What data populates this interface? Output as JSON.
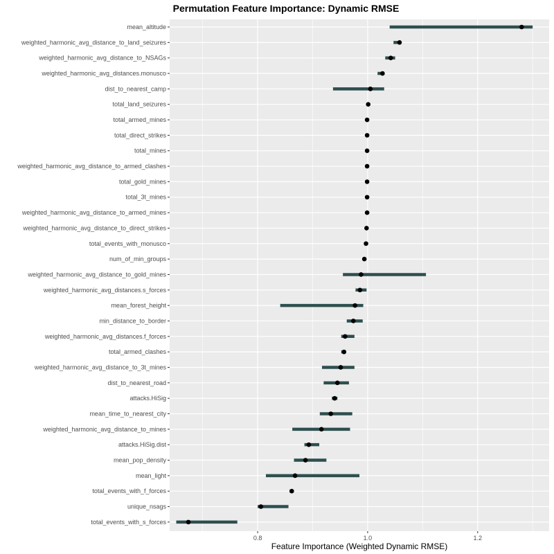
{
  "chart_data": {
    "type": "dot-errorbar",
    "title": "Permutation Feature Importance: Dynamic RMSE",
    "xlabel": "Feature Importance (Weighted Dynamic RMSE)",
    "ylabel": "",
    "xlim": [
      0.64,
      1.33
    ],
    "x_ticks": [
      0.8,
      1.0,
      1.2
    ],
    "x_tick_labels": [
      "0.8",
      "1.0",
      "1.2"
    ],
    "grid": true,
    "legend": "none",
    "colors": {
      "panel": "#ebebeb",
      "grid": "#ffffff",
      "range_bar": "#2f4f4f",
      "point": "#000000"
    },
    "features": [
      {
        "name": "mean_altitude",
        "value": 1.28,
        "low": 1.04,
        "high": 1.3
      },
      {
        "name": "weighted_harmonic_avg_distance_to_land_seizures",
        "value": 1.058,
        "low": 1.047,
        "high": 1.06
      },
      {
        "name": "weighted_harmonic_avg_distance_to_NSAGs",
        "value": 1.042,
        "low": 1.032,
        "high": 1.05
      },
      {
        "name": "weighted_harmonic_avg_distances.monusco",
        "value": 1.027,
        "low": 1.018,
        "high": 1.03
      },
      {
        "name": "dist_to_nearest_camp",
        "value": 1.005,
        "low": 0.937,
        "high": 1.03
      },
      {
        "name": "total_land_seizures",
        "value": 1.001,
        "low": 0.999,
        "high": 1.003
      },
      {
        "name": "total_armed_mines",
        "value": 0.999,
        "low": 0.997,
        "high": 1.001
      },
      {
        "name": "total_direct_strikes",
        "value": 0.999,
        "low": 0.997,
        "high": 1.001
      },
      {
        "name": "total_mines",
        "value": 0.999,
        "low": 0.997,
        "high": 1.001
      },
      {
        "name": "weighted_harmonic_avg_distance_to_armed_clashes",
        "value": 0.999,
        "low": 0.997,
        "high": 1.001
      },
      {
        "name": "total_gold_mines",
        "value": 0.999,
        "low": 0.997,
        "high": 1.001
      },
      {
        "name": "total_3t_mines",
        "value": 0.999,
        "low": 0.997,
        "high": 1.001
      },
      {
        "name": "weighted_harmonic_avg_distance_to_armed_mines",
        "value": 0.999,
        "low": 0.997,
        "high": 1.001
      },
      {
        "name": "weighted_harmonic_avg_distance_to_direct_strikes",
        "value": 0.998,
        "low": 0.996,
        "high": 1.0
      },
      {
        "name": "total_events_with_monusco",
        "value": 0.997,
        "low": 0.995,
        "high": 0.999
      },
      {
        "name": "num_of_min_groups",
        "value": 0.994,
        "low": 0.992,
        "high": 0.996
      },
      {
        "name": "weighted_harmonic_avg_distance_to_gold_mines",
        "value": 0.988,
        "low": 0.955,
        "high": 1.106
      },
      {
        "name": "weighted_harmonic_avg_distances.s_forces",
        "value": 0.986,
        "low": 0.978,
        "high": 0.998
      },
      {
        "name": "mean_forest_height",
        "value": 0.977,
        "low": 0.841,
        "high": 0.992
      },
      {
        "name": "min_distance_to_border",
        "value": 0.974,
        "low": 0.962,
        "high": 0.991
      },
      {
        "name": "weighted_harmonic_avg_distances.f_forces",
        "value": 0.959,
        "low": 0.952,
        "high": 0.976
      },
      {
        "name": "total_armed_clashes",
        "value": 0.957,
        "low": 0.952,
        "high": 0.96
      },
      {
        "name": "weighted_harmonic_avg_distance_to_3t_mines",
        "value": 0.951,
        "low": 0.917,
        "high": 0.976
      },
      {
        "name": "dist_to_nearest_road",
        "value": 0.945,
        "low": 0.92,
        "high": 0.966
      },
      {
        "name": "attacks.HiSig",
        "value": 0.94,
        "low": 0.935,
        "high": 0.945
      },
      {
        "name": "mean_time_to_nearest_city",
        "value": 0.933,
        "low": 0.913,
        "high": 0.972
      },
      {
        "name": "weighted_harmonic_avg_distance_to_mines",
        "value": 0.916,
        "low": 0.863,
        "high": 0.968
      },
      {
        "name": "attacks.HiSig.dist",
        "value": 0.893,
        "low": 0.885,
        "high": 0.912
      },
      {
        "name": "mean_pop_density",
        "value": 0.887,
        "low": 0.866,
        "high": 0.925
      },
      {
        "name": "mean_light",
        "value": 0.868,
        "low": 0.815,
        "high": 0.985
      },
      {
        "name": "total_events_with_f_forces",
        "value": 0.862,
        "low": 0.858,
        "high": 0.865
      },
      {
        "name": "unique_nsags",
        "value": 0.806,
        "low": 0.8,
        "high": 0.856
      },
      {
        "name": "total_events_with_s_forces",
        "value": 0.674,
        "low": 0.652,
        "high": 0.763
      }
    ]
  }
}
